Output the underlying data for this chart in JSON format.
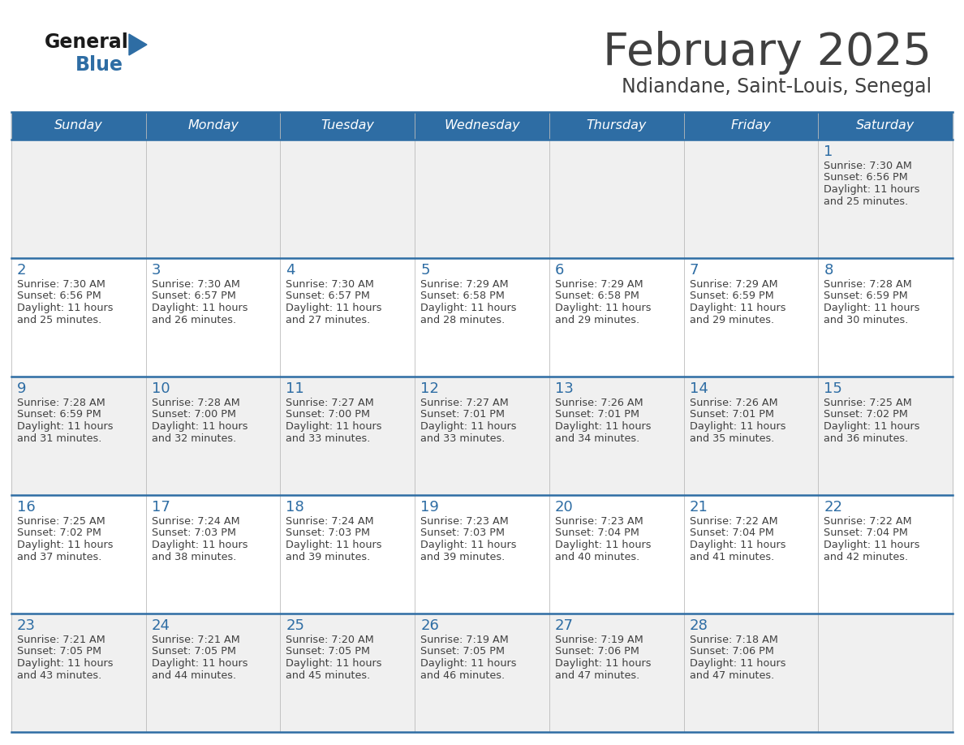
{
  "title": "February 2025",
  "subtitle": "Ndiandane, Saint-Louis, Senegal",
  "header_bg": "#2E6DA4",
  "header_text": "#FFFFFF",
  "cell_bg_light": "#F0F0F0",
  "cell_bg_white": "#FFFFFF",
  "day_names": [
    "Sunday",
    "Monday",
    "Tuesday",
    "Wednesday",
    "Thursday",
    "Friday",
    "Saturday"
  ],
  "separator_color": "#2E6DA4",
  "day_number_color": "#2E6DA4",
  "text_color": "#404040",
  "logo_general_color": "#1a1a1a",
  "logo_blue_color": "#2E6DA4",
  "calendar_data": [
    [
      null,
      null,
      null,
      null,
      null,
      null,
      {
        "day": "1",
        "sunrise": "7:30 AM",
        "sunset": "6:56 PM",
        "daylight": "11 hours",
        "daylight2": "and 25 minutes."
      }
    ],
    [
      {
        "day": "2",
        "sunrise": "7:30 AM",
        "sunset": "6:56 PM",
        "daylight": "11 hours",
        "daylight2": "and 25 minutes."
      },
      {
        "day": "3",
        "sunrise": "7:30 AM",
        "sunset": "6:57 PM",
        "daylight": "11 hours",
        "daylight2": "and 26 minutes."
      },
      {
        "day": "4",
        "sunrise": "7:30 AM",
        "sunset": "6:57 PM",
        "daylight": "11 hours",
        "daylight2": "and 27 minutes."
      },
      {
        "day": "5",
        "sunrise": "7:29 AM",
        "sunset": "6:58 PM",
        "daylight": "11 hours",
        "daylight2": "and 28 minutes."
      },
      {
        "day": "6",
        "sunrise": "7:29 AM",
        "sunset": "6:58 PM",
        "daylight": "11 hours",
        "daylight2": "and 29 minutes."
      },
      {
        "day": "7",
        "sunrise": "7:29 AM",
        "sunset": "6:59 PM",
        "daylight": "11 hours",
        "daylight2": "and 29 minutes."
      },
      {
        "day": "8",
        "sunrise": "7:28 AM",
        "sunset": "6:59 PM",
        "daylight": "11 hours",
        "daylight2": "and 30 minutes."
      }
    ],
    [
      {
        "day": "9",
        "sunrise": "7:28 AM",
        "sunset": "6:59 PM",
        "daylight": "11 hours",
        "daylight2": "and 31 minutes."
      },
      {
        "day": "10",
        "sunrise": "7:28 AM",
        "sunset": "7:00 PM",
        "daylight": "11 hours",
        "daylight2": "and 32 minutes."
      },
      {
        "day": "11",
        "sunrise": "7:27 AM",
        "sunset": "7:00 PM",
        "daylight": "11 hours",
        "daylight2": "and 33 minutes."
      },
      {
        "day": "12",
        "sunrise": "7:27 AM",
        "sunset": "7:01 PM",
        "daylight": "11 hours",
        "daylight2": "and 33 minutes."
      },
      {
        "day": "13",
        "sunrise": "7:26 AM",
        "sunset": "7:01 PM",
        "daylight": "11 hours",
        "daylight2": "and 34 minutes."
      },
      {
        "day": "14",
        "sunrise": "7:26 AM",
        "sunset": "7:01 PM",
        "daylight": "11 hours",
        "daylight2": "and 35 minutes."
      },
      {
        "day": "15",
        "sunrise": "7:25 AM",
        "sunset": "7:02 PM",
        "daylight": "11 hours",
        "daylight2": "and 36 minutes."
      }
    ],
    [
      {
        "day": "16",
        "sunrise": "7:25 AM",
        "sunset": "7:02 PM",
        "daylight": "11 hours",
        "daylight2": "and 37 minutes."
      },
      {
        "day": "17",
        "sunrise": "7:24 AM",
        "sunset": "7:03 PM",
        "daylight": "11 hours",
        "daylight2": "and 38 minutes."
      },
      {
        "day": "18",
        "sunrise": "7:24 AM",
        "sunset": "7:03 PM",
        "daylight": "11 hours",
        "daylight2": "and 39 minutes."
      },
      {
        "day": "19",
        "sunrise": "7:23 AM",
        "sunset": "7:03 PM",
        "daylight": "11 hours",
        "daylight2": "and 39 minutes."
      },
      {
        "day": "20",
        "sunrise": "7:23 AM",
        "sunset": "7:04 PM",
        "daylight": "11 hours",
        "daylight2": "and 40 minutes."
      },
      {
        "day": "21",
        "sunrise": "7:22 AM",
        "sunset": "7:04 PM",
        "daylight": "11 hours",
        "daylight2": "and 41 minutes."
      },
      {
        "day": "22",
        "sunrise": "7:22 AM",
        "sunset": "7:04 PM",
        "daylight": "11 hours",
        "daylight2": "and 42 minutes."
      }
    ],
    [
      {
        "day": "23",
        "sunrise": "7:21 AM",
        "sunset": "7:05 PM",
        "daylight": "11 hours",
        "daylight2": "and 43 minutes."
      },
      {
        "day": "24",
        "sunrise": "7:21 AM",
        "sunset": "7:05 PM",
        "daylight": "11 hours",
        "daylight2": "and 44 minutes."
      },
      {
        "day": "25",
        "sunrise": "7:20 AM",
        "sunset": "7:05 PM",
        "daylight": "11 hours",
        "daylight2": "and 45 minutes."
      },
      {
        "day": "26",
        "sunrise": "7:19 AM",
        "sunset": "7:05 PM",
        "daylight": "11 hours",
        "daylight2": "and 46 minutes."
      },
      {
        "day": "27",
        "sunrise": "7:19 AM",
        "sunset": "7:06 PM",
        "daylight": "11 hours",
        "daylight2": "and 47 minutes."
      },
      {
        "day": "28",
        "sunrise": "7:18 AM",
        "sunset": "7:06 PM",
        "daylight": "11 hours",
        "daylight2": "and 47 minutes."
      },
      null
    ]
  ]
}
